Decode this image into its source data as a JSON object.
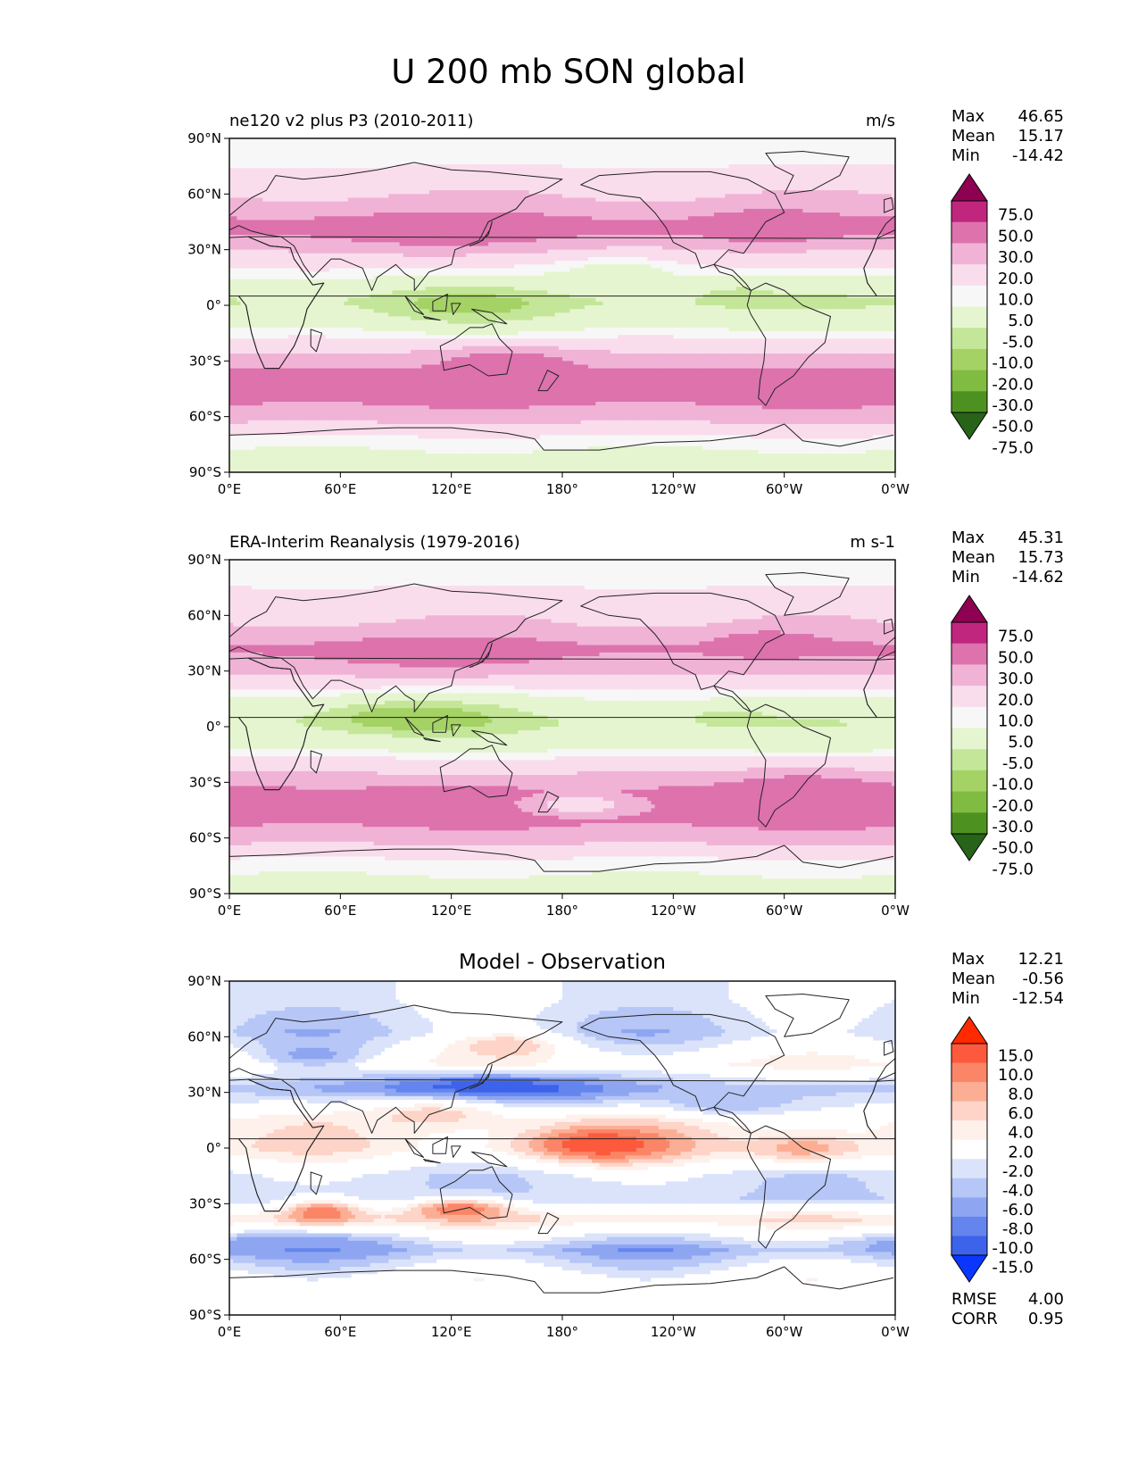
{
  "figure_title": "U 200 mb SON global",
  "colors": {
    "land_line": "#222222",
    "frame": "#000000",
    "field_pos": "#d35aa0",
    "field_neg": "#9fd26b",
    "diff_pos": "#f25a45",
    "diff_neg": "#3f6cf0"
  },
  "chart_data": [
    {
      "type": "heatmap",
      "title": "ne120 v2 plus P3 (2010-2011)",
      "units": "m/s",
      "stats": [
        {
          "label": "Max",
          "value": "46.65"
        },
        {
          "label": "Mean",
          "value": "15.17"
        },
        {
          "label": "Min",
          "value": "-14.42"
        }
      ],
      "x_ticks": [
        "0°E",
        "60°E",
        "120°E",
        "180°",
        "120°W",
        "60°W",
        "0°W"
      ],
      "y_ticks": [
        "90°N",
        "60°N",
        "30°N",
        "0°",
        "30°S",
        "60°S",
        "90°S"
      ],
      "xlim": [
        0,
        360
      ],
      "ylim": [
        -90,
        90
      ],
      "colorbar": {
        "labels": [
          "75.0",
          "50.0",
          "30.0",
          "20.0",
          "10.0",
          "5.0",
          "-5.0",
          "-10.0",
          "-20.0",
          "-30.0",
          "-50.0",
          "-75.0"
        ],
        "colors": [
          "#8e0152",
          "#c0267e",
          "#dd72ad",
          "#f0b3d6",
          "#fadded",
          "#f7f7f7",
          "#e5f5d0",
          "#c4e699",
          "#a5d265",
          "#7fbc41",
          "#4d9221",
          "#276419"
        ]
      },
      "bands": [
        {
          "lat": 80,
          "u": 6
        },
        {
          "lat": 70,
          "u": 14
        },
        {
          "lat": 55,
          "u": 22
        },
        {
          "lat": 42,
          "u": 35
        },
        {
          "lat": 32,
          "u": 22
        },
        {
          "lat": 22,
          "u": 12
        },
        {
          "lat": 12,
          "u": 2
        },
        {
          "lat": 2,
          "u": -6
        },
        {
          "lat": -10,
          "u": 2
        },
        {
          "lat": -22,
          "u": 14
        },
        {
          "lat": -36,
          "u": 32
        },
        {
          "lat": -50,
          "u": 34
        },
        {
          "lat": -62,
          "u": 22
        },
        {
          "lat": -72,
          "u": 8
        },
        {
          "lat": -84,
          "u": 2
        }
      ],
      "features": [
        {
          "lon": 115,
          "lat": 40,
          "dlon": 45,
          "dlat": 7,
          "u": 36
        },
        {
          "lon": 290,
          "lat": 42,
          "dlon": 20,
          "dlat": 6,
          "u": 40
        },
        {
          "lon": 130,
          "lat": 0,
          "dlon": 35,
          "dlat": 7,
          "u": -12
        },
        {
          "lon": 275,
          "lat": 5,
          "dlon": 15,
          "dlat": 4,
          "u": -8
        },
        {
          "lon": 210,
          "lat": 18,
          "dlon": 25,
          "dlat": 6,
          "u": 2
        },
        {
          "lon": 150,
          "lat": -30,
          "dlon": 30,
          "dlat": 5,
          "u": 35
        }
      ]
    },
    {
      "type": "heatmap",
      "title": "ERA-Interim Reanalysis (1979-2016)",
      "units": "m s-1",
      "stats": [
        {
          "label": "Max",
          "value": "45.31"
        },
        {
          "label": "Mean",
          "value": "15.73"
        },
        {
          "label": "Min",
          "value": "-14.62"
        }
      ],
      "x_ticks": [
        "0°E",
        "60°E",
        "120°E",
        "180°",
        "120°W",
        "60°W",
        "0°W"
      ],
      "y_ticks": [
        "90°N",
        "60°N",
        "30°N",
        "0°",
        "30°S",
        "60°S",
        "90°S"
      ],
      "xlim": [
        0,
        360
      ],
      "ylim": [
        -90,
        90
      ],
      "colorbar": {
        "labels": [
          "75.0",
          "50.0",
          "30.0",
          "20.0",
          "10.0",
          "5.0",
          "-5.0",
          "-10.0",
          "-20.0",
          "-30.0",
          "-50.0",
          "-75.0"
        ],
        "colors": [
          "#8e0152",
          "#c0267e",
          "#dd72ad",
          "#f0b3d6",
          "#fadded",
          "#f7f7f7",
          "#e5f5d0",
          "#c4e699",
          "#a5d265",
          "#7fbc41",
          "#4d9221",
          "#276419"
        ]
      },
      "bands": [
        {
          "lat": 80,
          "u": 6
        },
        {
          "lat": 70,
          "u": 15
        },
        {
          "lat": 55,
          "u": 20
        },
        {
          "lat": 42,
          "u": 32
        },
        {
          "lat": 32,
          "u": 24
        },
        {
          "lat": 22,
          "u": 12
        },
        {
          "lat": 12,
          "u": 2
        },
        {
          "lat": 2,
          "u": -4
        },
        {
          "lat": -10,
          "u": 2
        },
        {
          "lat": -22,
          "u": 16
        },
        {
          "lat": -36,
          "u": 34
        },
        {
          "lat": -50,
          "u": 34
        },
        {
          "lat": -62,
          "u": 22
        },
        {
          "lat": -72,
          "u": 9
        },
        {
          "lat": -84,
          "u": 3
        }
      ],
      "features": [
        {
          "lon": 110,
          "lat": 40,
          "dlon": 50,
          "dlat": 7,
          "u": 34
        },
        {
          "lon": 290,
          "lat": 45,
          "dlon": 20,
          "dlat": 5,
          "u": 36
        },
        {
          "lon": 100,
          "lat": 5,
          "dlon": 40,
          "dlat": 7,
          "u": -14
        },
        {
          "lon": 270,
          "lat": 5,
          "dlon": 20,
          "dlat": 4,
          "u": -7
        },
        {
          "lon": 190,
          "lat": -42,
          "dlon": 20,
          "dlat": 4,
          "u": 12
        },
        {
          "lon": 310,
          "lat": -35,
          "dlon": 30,
          "dlat": 7,
          "u": 38
        }
      ]
    },
    {
      "type": "heatmap",
      "title": "Model - Observation",
      "units": "",
      "stats": [
        {
          "label": "Max",
          "value": "12.21"
        },
        {
          "label": "Mean",
          "value": "-0.56"
        },
        {
          "label": "Min",
          "value": "-12.54"
        }
      ],
      "metrics": [
        {
          "label": "RMSE",
          "value": "4.00"
        },
        {
          "label": "CORR",
          "value": "0.95"
        }
      ],
      "x_ticks": [
        "0°E",
        "60°E",
        "120°E",
        "180°",
        "120°W",
        "60°W",
        "0°W"
      ],
      "y_ticks": [
        "90°N",
        "60°N",
        "30°N",
        "0°",
        "30°S",
        "60°S",
        "90°S"
      ],
      "xlim": [
        0,
        360
      ],
      "ylim": [
        -90,
        90
      ],
      "colorbar": {
        "labels": [
          "15.0",
          "10.0",
          "8.0",
          "6.0",
          "4.0",
          "2.0",
          "-2.0",
          "-4.0",
          "-6.0",
          "-8.0",
          "-10.0",
          "-15.0"
        ],
        "colors": [
          "#ff2a00",
          "#fd5a3d",
          "#fb8567",
          "#fcae95",
          "#fdd4c7",
          "#fef1ec",
          "#ffffff",
          "#dbe3fb",
          "#b6c6f6",
          "#8ea6f1",
          "#6585ee",
          "#3d63ea",
          "#0a37ff"
        ]
      },
      "bands": [
        {
          "lat": 80,
          "u": -2
        },
        {
          "lat": 62,
          "u": -4
        },
        {
          "lat": 45,
          "u": 2
        },
        {
          "lat": 32,
          "u": -5
        },
        {
          "lat": 15,
          "u": 2
        },
        {
          "lat": 0,
          "u": 3
        },
        {
          "lat": -15,
          "u": -3
        },
        {
          "lat": -28,
          "u": -4
        },
        {
          "lat": -38,
          "u": 4
        },
        {
          "lat": -55,
          "u": -6
        },
        {
          "lat": -70,
          "u": 0
        },
        {
          "lat": -84,
          "u": 0
        }
      ],
      "features": [
        {
          "lon": 140,
          "lat": 32,
          "dlon": 50,
          "dlat": 6,
          "u": -12
        },
        {
          "lon": 200,
          "lat": 2,
          "dlon": 30,
          "dlat": 7,
          "u": 12
        },
        {
          "lon": 50,
          "lat": -35,
          "dlon": 15,
          "dlat": 5,
          "u": 10
        },
        {
          "lon": 125,
          "lat": -33,
          "dlon": 20,
          "dlat": 4,
          "u": 10
        },
        {
          "lon": 30,
          "lat": -52,
          "dlon": 40,
          "dlat": 4,
          "u": -8
        },
        {
          "lon": 150,
          "lat": 55,
          "dlon": 20,
          "dlat": 5,
          "u": 6
        },
        {
          "lon": 45,
          "lat": 50,
          "dlon": 20,
          "dlat": 5,
          "u": -7
        },
        {
          "lon": 310,
          "lat": 0,
          "dlon": 25,
          "dlat": 6,
          "u": 7
        },
        {
          "lon": 110,
          "lat": 18,
          "dlon": 30,
          "dlat": 6,
          "u": 5
        },
        {
          "lon": 270,
          "lat": 25,
          "dlon": 25,
          "dlat": 5,
          "u": -6
        }
      ]
    }
  ],
  "continents": {
    "north_america": [
      [
        190,
        65
      ],
      [
        200,
        70
      ],
      [
        230,
        72
      ],
      [
        260,
        72
      ],
      [
        280,
        68
      ],
      [
        295,
        60
      ],
      [
        300,
        50
      ],
      [
        290,
        45
      ],
      [
        283,
        35
      ],
      [
        278,
        28
      ],
      [
        270,
        30
      ],
      [
        262,
        22
      ],
      [
        255,
        20
      ],
      [
        252,
        28
      ],
      [
        240,
        34
      ],
      [
        236,
        42
      ],
      [
        230,
        50
      ],
      [
        222,
        58
      ],
      [
        205,
        60
      ]
    ],
    "central_america": [
      [
        262,
        22
      ],
      [
        265,
        18
      ],
      [
        272,
        16
      ],
      [
        278,
        10
      ],
      [
        282,
        8
      ],
      [
        279,
        12
      ],
      [
        272,
        19
      ]
    ],
    "south_america": [
      [
        282,
        8
      ],
      [
        290,
        12
      ],
      [
        300,
        8
      ],
      [
        310,
        0
      ],
      [
        325,
        -6
      ],
      [
        322,
        -20
      ],
      [
        313,
        -28
      ],
      [
        305,
        -38
      ],
      [
        295,
        -45
      ],
      [
        290,
        -54
      ],
      [
        286,
        -50
      ],
      [
        287,
        -40
      ],
      [
        289,
        -30
      ],
      [
        290,
        -18
      ],
      [
        282,
        -5
      ],
      [
        280,
        0
      ]
    ],
    "greenland": [
      [
        300,
        60
      ],
      [
        315,
        62
      ],
      [
        330,
        70
      ],
      [
        335,
        80
      ],
      [
        310,
        83
      ],
      [
        290,
        82
      ],
      [
        295,
        75
      ],
      [
        305,
        70
      ]
    ],
    "eurasia": [
      [
        350,
        36
      ],
      [
        355,
        44
      ],
      [
        2,
        50
      ],
      [
        8,
        55
      ],
      [
        12,
        58
      ],
      [
        20,
        62
      ],
      [
        25,
        70
      ],
      [
        40,
        68
      ],
      [
        60,
        70
      ],
      [
        80,
        73
      ],
      [
        100,
        77
      ],
      [
        120,
        73
      ],
      [
        140,
        72
      ],
      [
        160,
        70
      ],
      [
        180,
        68
      ],
      [
        170,
        62
      ],
      [
        160,
        58
      ],
      [
        155,
        52
      ],
      [
        140,
        45
      ],
      [
        135,
        35
      ],
      [
        122,
        30
      ],
      [
        120,
        22
      ],
      [
        108,
        18
      ],
      [
        100,
        8
      ],
      [
        100,
        14
      ],
      [
        95,
        17
      ],
      [
        90,
        22
      ],
      [
        80,
        15
      ],
      [
        77,
        8
      ],
      [
        72,
        20
      ],
      [
        60,
        25
      ],
      [
        55,
        25
      ],
      [
        45,
        15
      ],
      [
        40,
        22
      ],
      [
        35,
        32
      ],
      [
        28,
        37
      ],
      [
        20,
        38
      ],
      [
        12,
        40
      ],
      [
        5,
        43
      ]
    ],
    "africa": [
      [
        350,
        36
      ],
      [
        10,
        37
      ],
      [
        22,
        32
      ],
      [
        33,
        31
      ],
      [
        35,
        25
      ],
      [
        45,
        11
      ],
      [
        51,
        12
      ],
      [
        42,
        -2
      ],
      [
        40,
        -10
      ],
      [
        35,
        -22
      ],
      [
        27,
        -34
      ],
      [
        19,
        -34
      ],
      [
        15,
        -25
      ],
      [
        12,
        -15
      ],
      [
        9,
        0
      ],
      [
        5,
        5
      ],
      [
        350,
        5
      ],
      [
        345,
        12
      ],
      [
        343,
        20
      ],
      [
        348,
        30
      ]
    ],
    "australia": [
      [
        114,
        -22
      ],
      [
        122,
        -18
      ],
      [
        130,
        -12
      ],
      [
        137,
        -12
      ],
      [
        142,
        -10
      ],
      [
        146,
        -18
      ],
      [
        153,
        -25
      ],
      [
        150,
        -37
      ],
      [
        140,
        -38
      ],
      [
        130,
        -32
      ],
      [
        116,
        -35
      ]
    ],
    "antarctica": [
      [
        0,
        -70
      ],
      [
        30,
        -69
      ],
      [
        60,
        -67
      ],
      [
        90,
        -66
      ],
      [
        120,
        -66
      ],
      [
        150,
        -69
      ],
      [
        165,
        -72
      ],
      [
        170,
        -78
      ],
      [
        200,
        -78
      ],
      [
        230,
        -74
      ],
      [
        260,
        -73
      ],
      [
        285,
        -70
      ],
      [
        300,
        -64
      ],
      [
        310,
        -73
      ],
      [
        330,
        -76
      ],
      [
        359,
        -70
      ]
    ],
    "maritime_islands": [
      [
        [
          95,
          5
        ],
        [
          105,
          -5
        ],
        [
          100,
          -3
        ]
      ],
      [
        [
          110,
          2
        ],
        [
          118,
          6
        ],
        [
          117,
          -3
        ],
        [
          110,
          -3
        ]
      ],
      [
        [
          105,
          -6
        ],
        [
          114,
          -8
        ],
        [
          106,
          -7
        ]
      ],
      [
        [
          131,
          -2
        ],
        [
          142,
          -4
        ],
        [
          150,
          -10
        ],
        [
          140,
          -8
        ]
      ],
      [
        [
          120,
          1
        ],
        [
          125,
          1
        ],
        [
          121,
          -5
        ]
      ]
    ],
    "japan": [
      [
        130,
        32
      ],
      [
        137,
        35
      ],
      [
        141,
        41
      ],
      [
        142,
        45
      ],
      [
        140,
        38
      ],
      [
        135,
        34
      ]
    ],
    "uk": [
      [
        354,
        50
      ],
      [
        359,
        52
      ],
      [
        358,
        58
      ],
      [
        354,
        57
      ]
    ],
    "madagascar": [
      [
        44,
        -13
      ],
      [
        50,
        -15
      ],
      [
        47,
        -25
      ],
      [
        44,
        -22
      ]
    ],
    "new_zealand": [
      [
        172,
        -35
      ],
      [
        178,
        -38
      ],
      [
        172,
        -46
      ],
      [
        167,
        -46
      ]
    ]
  }
}
